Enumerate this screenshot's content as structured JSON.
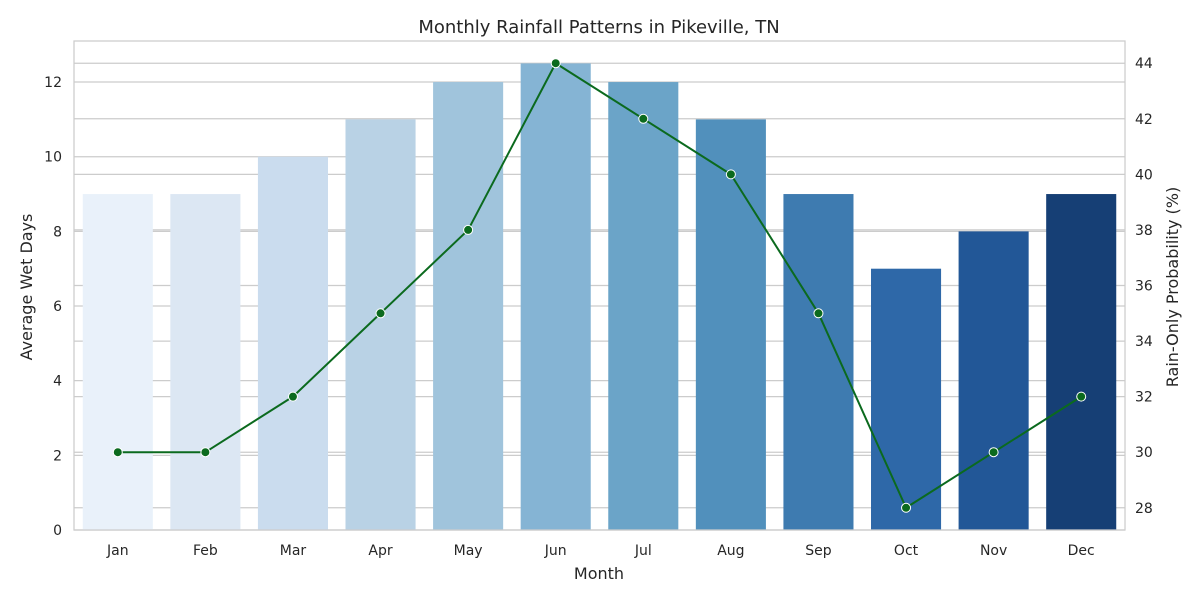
{
  "chart_data": {
    "type": "bar",
    "title": "Monthly Rainfall Patterns in Pikeville, TN",
    "xlabel": "Month",
    "ylabel": "Average Wet Days",
    "y2label": "Rain-Only Probability (%)",
    "categories": [
      "Jan",
      "Feb",
      "Mar",
      "Apr",
      "May",
      "Jun",
      "Jul",
      "Aug",
      "Sep",
      "Oct",
      "Nov",
      "Dec"
    ],
    "ylim": [
      0,
      13.1
    ],
    "y2lim": [
      27.2,
      44.8
    ],
    "yticks": [
      0,
      2,
      4,
      6,
      8,
      10,
      12
    ],
    "y2ticks": [
      28,
      30,
      32,
      34,
      36,
      38,
      40,
      42,
      44
    ],
    "grid": true,
    "series": [
      {
        "kind": "bar",
        "axis": "left",
        "values": [
          9,
          9,
          10,
          11,
          12,
          12.5,
          12,
          11,
          9,
          7,
          8,
          9
        ],
        "colors": [
          "#e9f1fa",
          "#dce7f3",
          "#cadcee",
          "#b9d2e5",
          "#a0c4dc",
          "#85b4d4",
          "#6ba4c8",
          "#5190bc",
          "#3e7bb0",
          "#2e68a8",
          "#225797",
          "#163f75"
        ]
      },
      {
        "kind": "line",
        "axis": "right",
        "values": [
          30,
          30,
          32,
          35,
          38,
          44,
          42,
          40,
          35,
          28,
          30,
          32
        ],
        "color": "#0b6a1e"
      }
    ]
  }
}
